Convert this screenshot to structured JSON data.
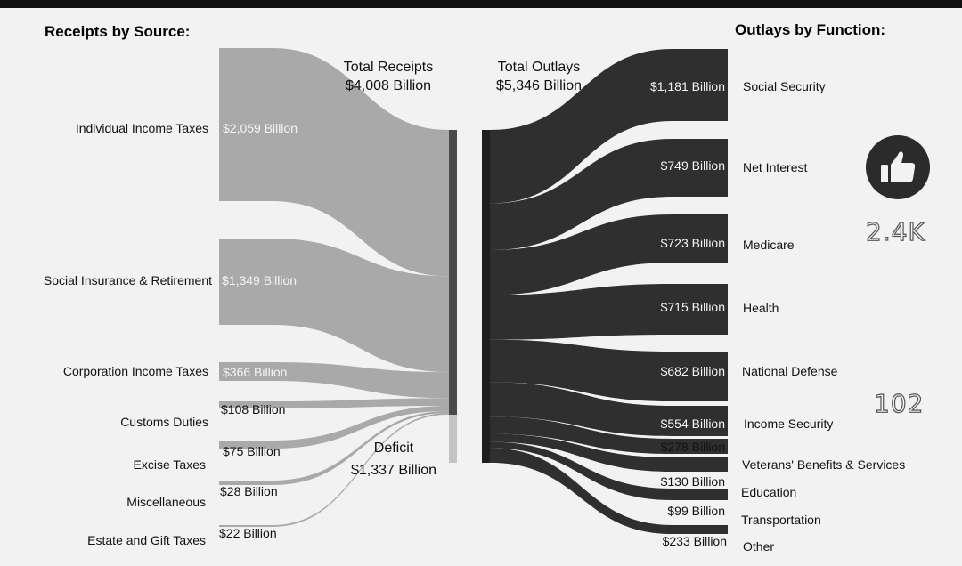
{
  "receipts_heading": "Receipts by Source:",
  "outlays_heading": "Outlays by Function:",
  "total_receipts": {
    "label": "Total Receipts",
    "value": "$4,008 Billion"
  },
  "total_outlays": {
    "label": "Total Outlays",
    "value": "$5,346 Billion"
  },
  "deficit": {
    "label": "Deficit",
    "value": "$1,337 Billion"
  },
  "receipts": [
    {
      "name": "Individual Income Taxes",
      "value": "$2,059 Billion",
      "amount": 2059
    },
    {
      "name": "Social Insurance & Retirement",
      "value": "$1,349 Billion",
      "amount": 1349
    },
    {
      "name": "Corporation Income Taxes",
      "value": "$366 Billion",
      "amount": 366
    },
    {
      "name": "Customs Duties",
      "value": "$108 Billion",
      "amount": 108
    },
    {
      "name": "Excise Taxes",
      "value": "$75 Billion",
      "amount": 75
    },
    {
      "name": "Miscellaneous",
      "value": "$28 Billion",
      "amount": 28
    },
    {
      "name": "Estate and Gift Taxes",
      "value": "$22 Billion",
      "amount": 22
    }
  ],
  "outlays": [
    {
      "name": "Social Security",
      "value": "$1,181 Billion",
      "amount": 1181
    },
    {
      "name": "Net Interest",
      "value": "$749 Billion",
      "amount": 749
    },
    {
      "name": "Medicare",
      "value": "$723 Billion",
      "amount": 723
    },
    {
      "name": "Health",
      "value": "$715 Billion",
      "amount": 715
    },
    {
      "name": "National Defense",
      "value": "$682 Billion",
      "amount": 682
    },
    {
      "name": "Income Security",
      "value": "$554 Billion",
      "amount": 554
    },
    {
      "name": "Veterans' Benefits & Services",
      "value": "$278 Billion",
      "amount": 278
    },
    {
      "name": "Education",
      "value": "$130 Billion",
      "amount": 130
    },
    {
      "name": "Transportation",
      "value": "$99 Billion",
      "amount": 99
    },
    {
      "name": "Other",
      "value": "$233 Billion",
      "amount": 233
    }
  ],
  "overlay": {
    "likes": "2.4K",
    "comments": "102",
    "like_icon": "thumbs-up-icon"
  },
  "colors": {
    "receipts": "#a9a9a9",
    "outlays": "#2f2f2f",
    "deficit": "#c4c4c4",
    "receipts_bar": "#4a4a4a"
  }
}
